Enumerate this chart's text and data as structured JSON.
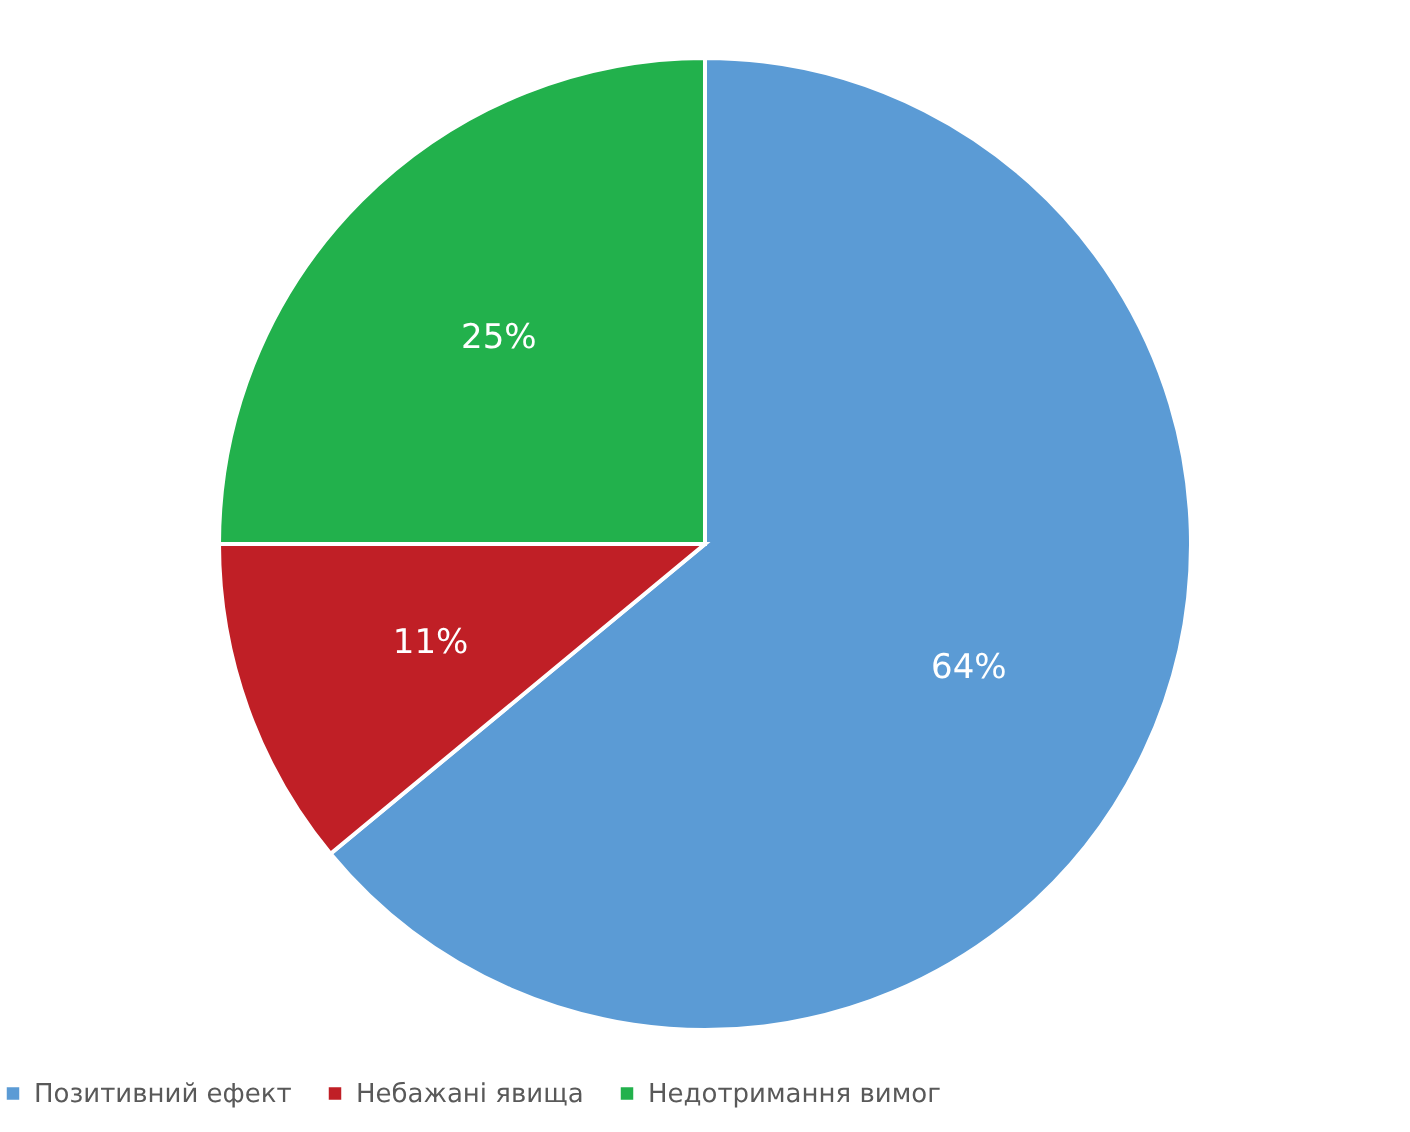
{
  "chart_data": {
    "type": "pie",
    "categories": [
      "Позитивний ефект",
      "Небажані явища",
      "Недотримання вимог"
    ],
    "values": [
      64,
      11,
      25
    ],
    "colors": [
      "#5b9bd5",
      "#c01f26",
      "#22b14c"
    ],
    "value_labels": [
      "64%",
      "11%",
      "25%"
    ],
    "legend": "bottom"
  }
}
